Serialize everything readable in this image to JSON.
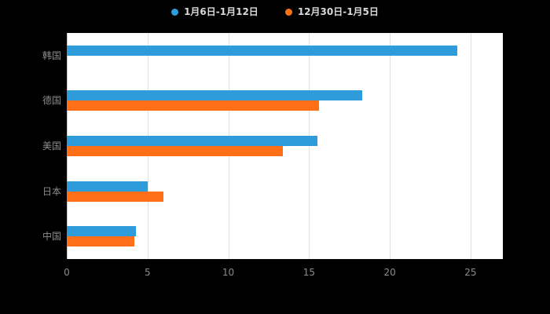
{
  "chart_data": {
    "type": "bar",
    "orientation": "horizontal",
    "title": "",
    "xlabel": "",
    "ylabel": "",
    "categories": [
      "韩国",
      "德国",
      "美国",
      "日本",
      "中国"
    ],
    "series": [
      {
        "name": "1月6日-1月12日",
        "color": "#2E9CDB",
        "values": [
          24.2,
          18.3,
          15.5,
          5.0,
          4.3
        ]
      },
      {
        "name": "12月30日-1月5日",
        "color": "#FF6F17",
        "values": [
          null,
          15.6,
          13.4,
          6.0,
          4.2
        ]
      }
    ],
    "xticks": [
      0,
      5,
      10,
      15,
      20,
      25
    ],
    "xlim": [
      0,
      27
    ],
    "grid": true,
    "legend_position": "top-center",
    "plot_background": "#ffffff",
    "page_background": "#000000",
    "axis_label_color": "#8c8c8c",
    "legend_text_color": "#d9d9d9"
  }
}
